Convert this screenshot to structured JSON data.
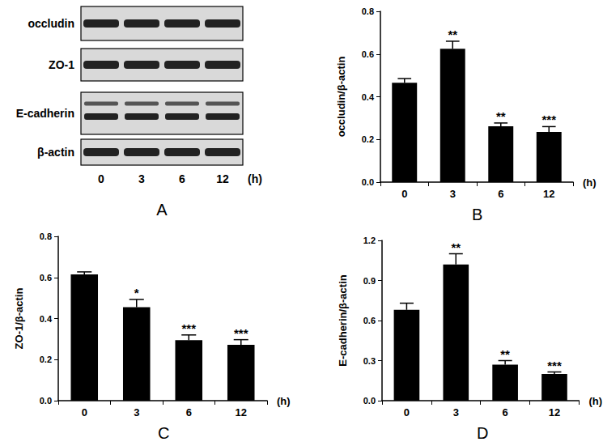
{
  "chart_data": [
    {
      "type": "bar",
      "panel": "B",
      "categories": [
        "0",
        "3",
        "6",
        "12"
      ],
      "values": [
        0.465,
        0.625,
        0.262,
        0.235
      ],
      "errors": [
        0.02,
        0.035,
        0.015,
        0.025
      ],
      "significance": [
        null,
        "**",
        "**",
        "***"
      ],
      "ylabel": "occludin/β-actin",
      "xlabel": "(h)",
      "color": "#000000",
      "ylim": [
        0,
        0.8
      ],
      "yticks": [
        {
          "value": 0,
          "label": "0.0"
        },
        0.2,
        0.4,
        0.6,
        0.8
      ],
      "grid": false
    },
    {
      "type": "bar",
      "panel": "C",
      "categories": [
        "0",
        "3",
        "6",
        "12"
      ],
      "values": [
        0.615,
        0.455,
        0.295,
        0.272
      ],
      "errors": [
        0.012,
        0.038,
        0.025,
        0.025
      ],
      "significance": [
        null,
        "*",
        "***",
        "***"
      ],
      "ylabel": "ZO-1/β-actin",
      "xlabel": "(h)",
      "color": "#000000",
      "ylim": [
        0,
        0.8
      ],
      "yticks": [
        {
          "value": 0,
          "label": "0.0"
        },
        0.2,
        0.4,
        0.6,
        0.8
      ],
      "grid": false
    },
    {
      "type": "bar",
      "panel": "D",
      "categories": [
        "0",
        "3",
        "6",
        "12"
      ],
      "values": [
        0.68,
        1.02,
        0.27,
        0.2
      ],
      "errors": [
        0.05,
        0.08,
        0.03,
        0.015
      ],
      "significance": [
        null,
        "**",
        "**",
        "***"
      ],
      "ylabel": "E-cadherin/β-actin",
      "xlabel": "(h)",
      "color": "#000000",
      "ylim": [
        0,
        1.2
      ],
      "yticks": [
        {
          "value": 0,
          "label": "0.0"
        },
        0.3,
        0.6,
        0.9,
        1.2
      ],
      "grid": false
    }
  ],
  "blot": {
    "panel": "A",
    "rows": [
      "occludin",
      "ZO-1",
      "E-cadherin",
      "β-actin"
    ],
    "lanes": [
      "0",
      "3",
      "6",
      "12"
    ],
    "unit": "(h)"
  }
}
